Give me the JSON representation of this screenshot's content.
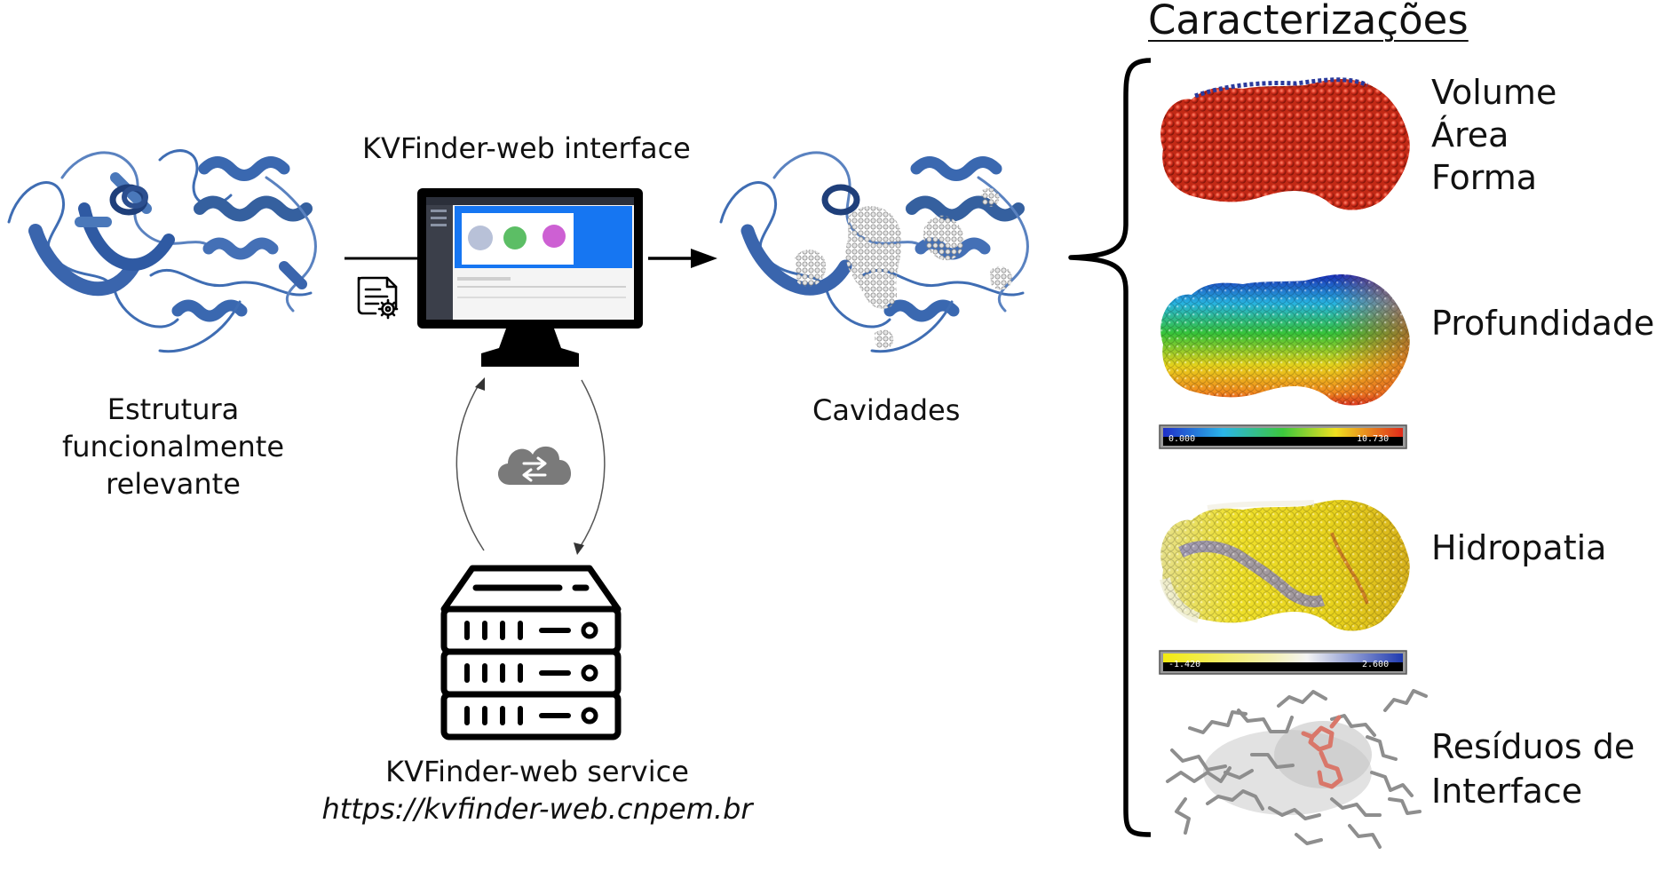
{
  "labels": {
    "structure_line1": "Estrutura",
    "structure_line2": "funcionalmente",
    "structure_line3": "relevante",
    "interface": "KVFinder-web interface",
    "cavities": "Cavidades",
    "service": "KVFinder-web service",
    "service_url": "https://kvfinder-web.cnpem.br",
    "characterizations": "Caracterizações",
    "volume": "Volume",
    "area": "Área",
    "shape": "Forma",
    "depth": "Profundidade",
    "hydropathy": "Hidropatia",
    "interface_residues_line1": "Resíduos de",
    "interface_residues_line2": "Interface"
  },
  "scales": {
    "depth": {
      "min": "0.000",
      "max": "10.730"
    },
    "hydropathy": {
      "min": "-1.420",
      "max": "2.600"
    }
  },
  "colors": {
    "protein": "#3f6db3",
    "volume_cavity": "#d8311f",
    "cavity_points": "#cfcfcf",
    "screen_blue": "#1676f2",
    "cloud": "#7a7a7a"
  },
  "icons": [
    "protein-structure-icon",
    "document-settings-icon",
    "monitor-icon",
    "cloud-transfer-icon",
    "server-icon",
    "brace-icon"
  ]
}
